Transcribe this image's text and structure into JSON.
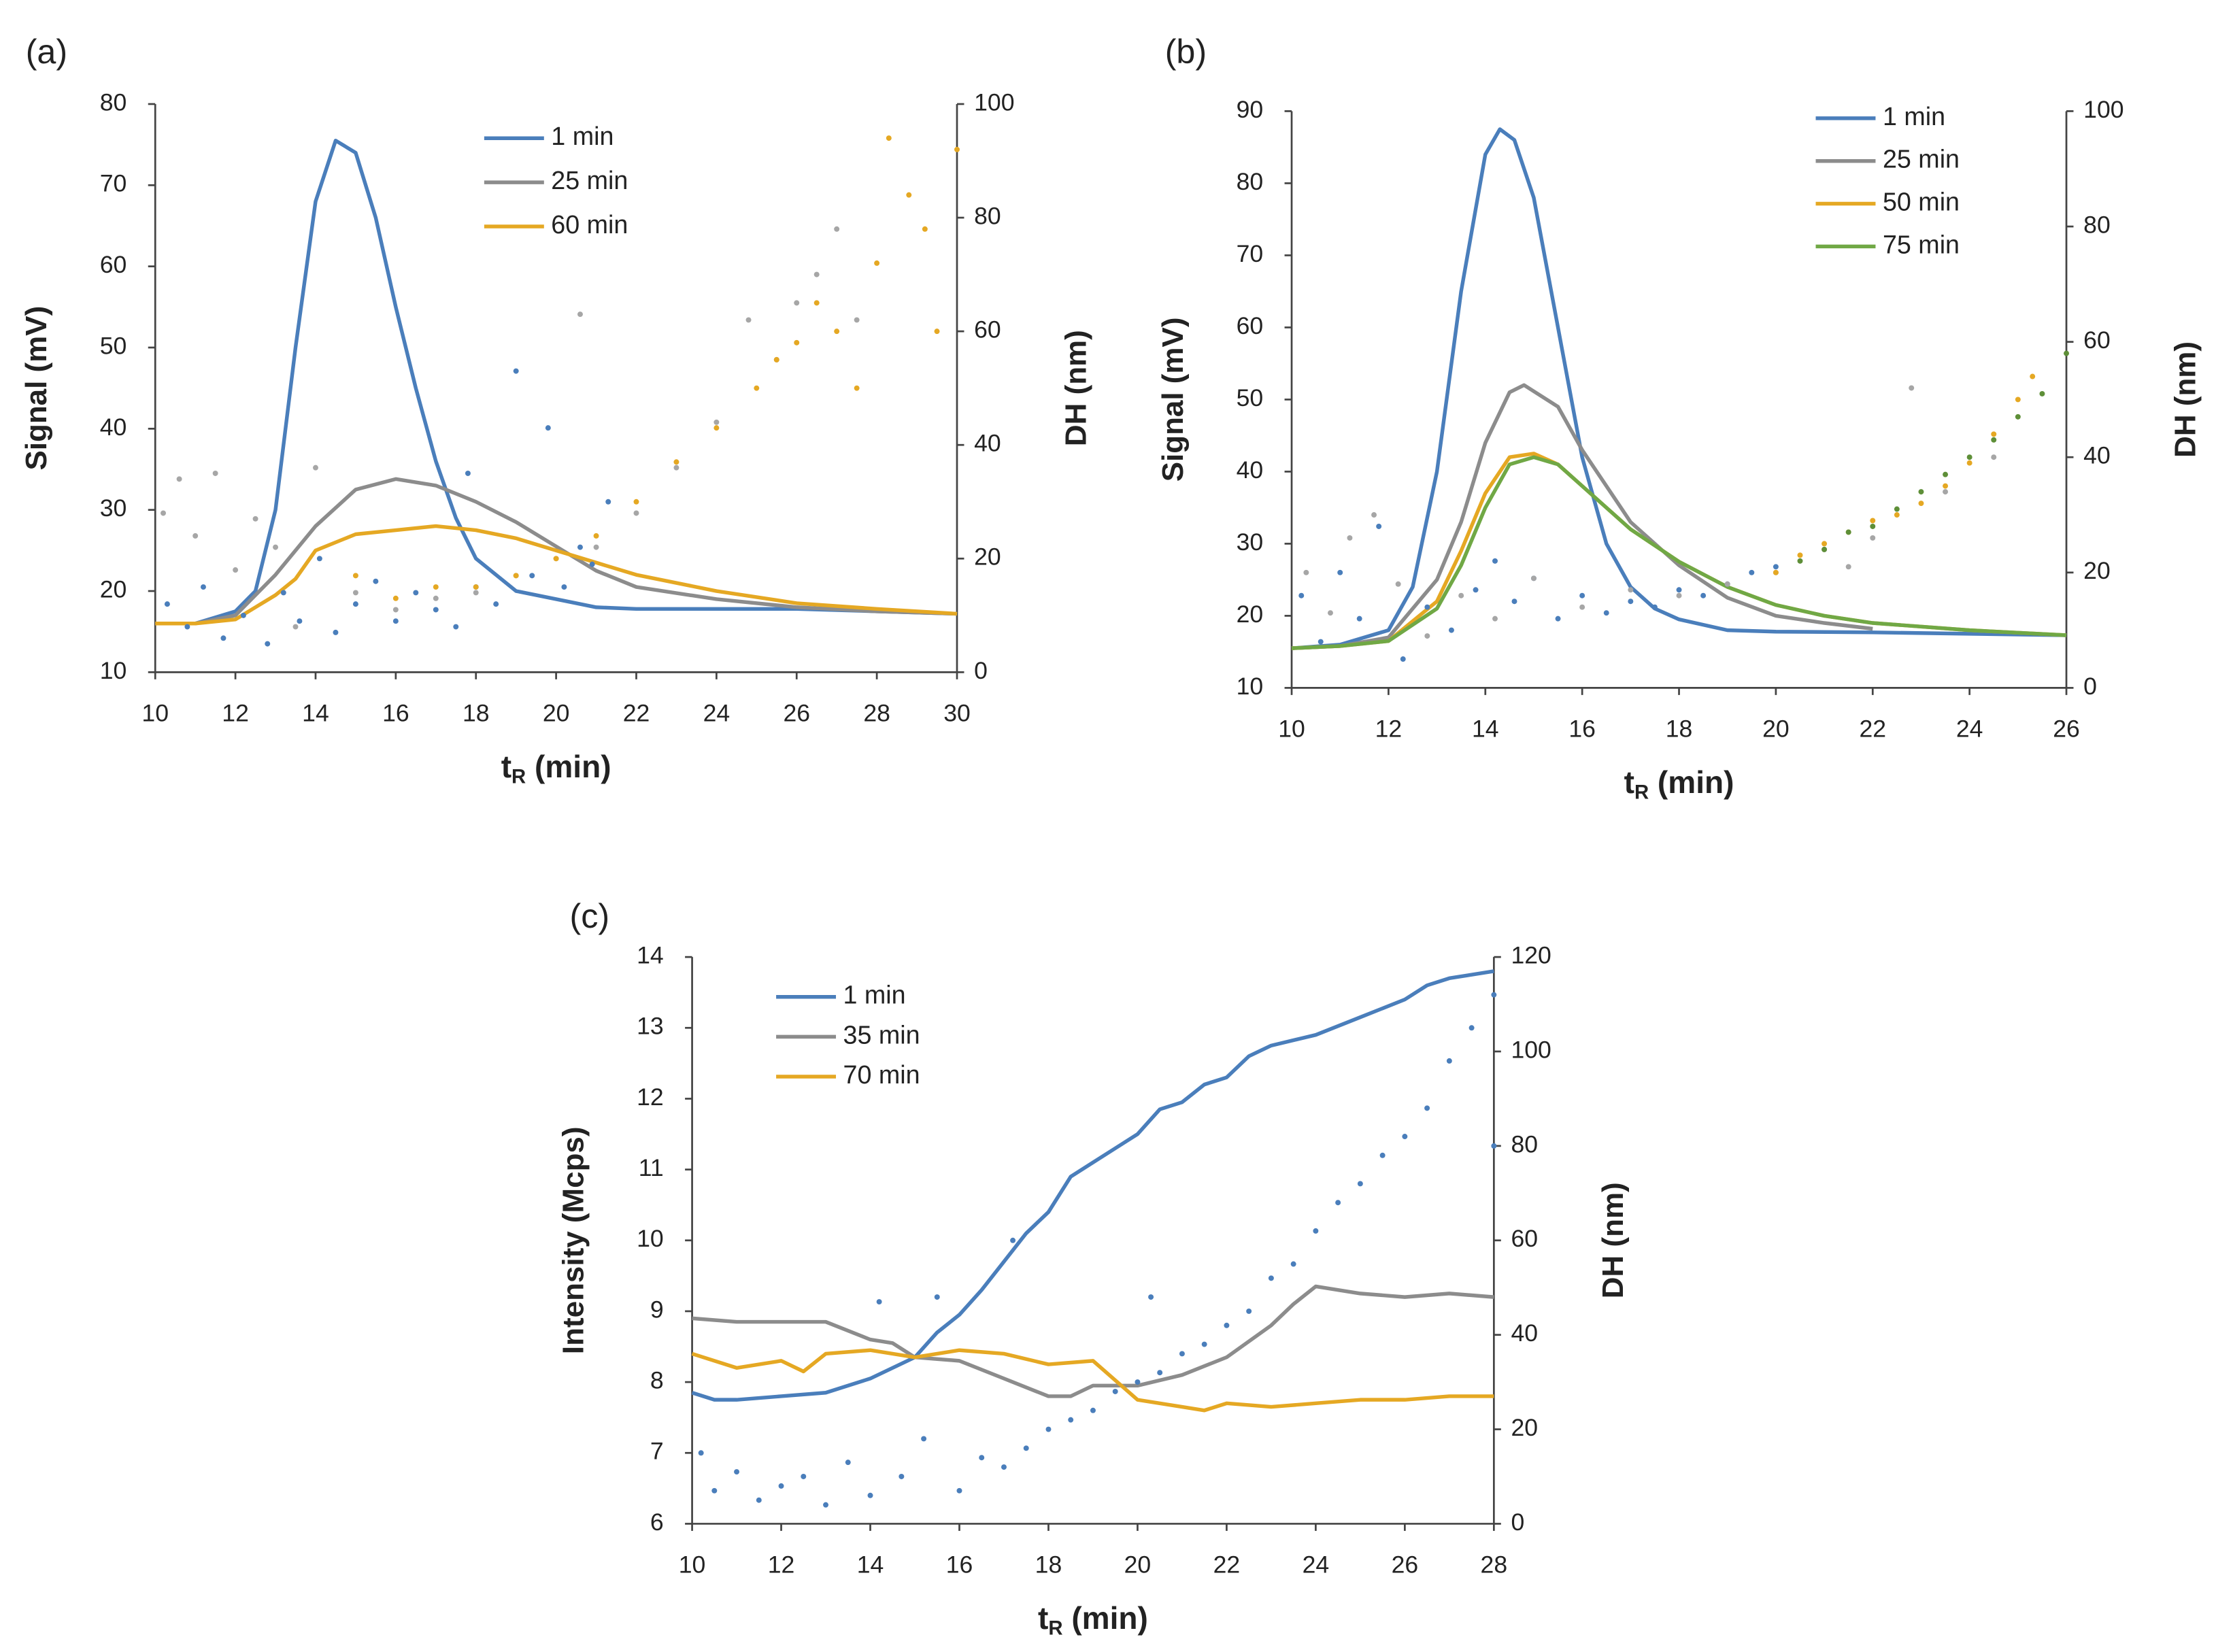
{
  "chart_data": [
    {
      "type": "line",
      "panel": "(a)",
      "x_label": [
        "t",
        "R",
        " (min)"
      ],
      "y_label": "Signal (mV)",
      "y2_label": "DH (nm)",
      "xlim": [
        10,
        30
      ],
      "xticks": [
        10,
        12,
        14,
        16,
        18,
        20,
        22,
        24,
        26,
        28,
        30
      ],
      "ylim": [
        10,
        80
      ],
      "yticks": [
        10,
        20,
        30,
        40,
        50,
        60,
        70,
        80
      ],
      "y2lim": [
        0,
        100
      ],
      "y2ticks": [
        0,
        20,
        40,
        60,
        80,
        100
      ],
      "series": [
        {
          "name": "1 min",
          "color": "#4a7ebb",
          "x": [
            10,
            11,
            12,
            12.5,
            13,
            13.5,
            14,
            14.5,
            15,
            15.5,
            16,
            16.5,
            17,
            17.5,
            18,
            19,
            20,
            21,
            22,
            24,
            26,
            28,
            30
          ],
          "values": [
            16,
            16,
            17.5,
            20,
            30,
            50,
            68,
            75.5,
            74,
            66,
            55,
            45,
            36,
            29,
            24,
            20,
            19,
            18,
            17.8,
            17.8,
            17.8,
            17.5,
            17.2
          ]
        },
        {
          "name": "25 min",
          "color": "#8c8c8c",
          "x": [
            10,
            11,
            12,
            13,
            14,
            15,
            16,
            17,
            18,
            19,
            20,
            21,
            22,
            24,
            26,
            28,
            30
          ],
          "values": [
            16,
            16,
            17,
            22,
            28,
            32.5,
            33.8,
            33,
            31,
            28.5,
            25.5,
            22.5,
            20.5,
            19,
            18,
            17.5,
            17.2
          ]
        },
        {
          "name": "60 min",
          "color": "#e5a823",
          "x": [
            10,
            11,
            12,
            13,
            13.5,
            14,
            15,
            16,
            17,
            18,
            19,
            20,
            21,
            22,
            24,
            26,
            28,
            30
          ],
          "values": [
            16,
            16,
            16.5,
            19.5,
            21.5,
            25,
            27,
            27.5,
            28,
            27.5,
            26.5,
            25,
            23.5,
            22,
            20,
            18.5,
            17.8,
            17.2
          ]
        },
        {
          "type": "scatter",
          "axis": "y2",
          "color": "#4a7ebb",
          "x": [
            10.3,
            10.8,
            11.2,
            11.7,
            12.2,
            12.8,
            13.2,
            13.6,
            14.1,
            14.5,
            15,
            15.5,
            16,
            16.5,
            17,
            17.5,
            18,
            18.5,
            19,
            19.4,
            19.8,
            20.2,
            20.6,
            20.9,
            21.3,
            17.8
          ],
          "values": [
            12,
            8,
            15,
            6,
            10,
            5,
            14,
            9,
            20,
            7,
            12,
            16,
            9,
            14,
            11,
            8,
            15,
            12,
            53,
            17,
            43,
            15,
            22,
            19,
            30,
            35
          ]
        },
        {
          "type": "scatter",
          "axis": "y2",
          "color": "#a6a6a6",
          "x": [
            10.2,
            10.6,
            11,
            11.5,
            12,
            12.5,
            13,
            13.5,
            14,
            15,
            16,
            17,
            18,
            19,
            20,
            20.6,
            21,
            22,
            23,
            24,
            24.8,
            25.5,
            26,
            26.5,
            27,
            27.5
          ],
          "values": [
            28,
            34,
            24,
            35,
            18,
            27,
            22,
            8,
            36,
            14,
            11,
            13,
            14,
            17,
            20,
            63,
            22,
            28,
            36,
            44,
            62,
            55,
            65,
            70,
            78,
            62
          ]
        },
        {
          "type": "scatter",
          "axis": "y2",
          "color": "#e5a823",
          "x": [
            15,
            16,
            17,
            18,
            19,
            20,
            21,
            22,
            23,
            24,
            25,
            25.5,
            26,
            26.5,
            27,
            27.5,
            28,
            28.3,
            28.8,
            29.2,
            29.5,
            30
          ],
          "values": [
            17,
            13,
            15,
            15,
            17,
            20,
            24,
            30,
            37,
            43,
            50,
            55,
            58,
            65,
            60,
            50,
            72,
            94,
            84,
            78,
            60,
            92
          ]
        }
      ]
    },
    {
      "type": "line",
      "panel": "(b)",
      "x_label": [
        "t",
        "R",
        " (min)"
      ],
      "y_label": "Signal (mV)",
      "y2_label": "DH (nm)",
      "xlim": [
        10,
        26
      ],
      "xticks": [
        10,
        12,
        14,
        16,
        18,
        20,
        22,
        24,
        26
      ],
      "ylim": [
        10,
        90
      ],
      "yticks": [
        10,
        20,
        30,
        40,
        50,
        60,
        70,
        80,
        90
      ],
      "y2lim": [
        0,
        100
      ],
      "y2ticks": [
        0,
        20,
        40,
        60,
        80,
        100
      ],
      "series": [
        {
          "name": "1 min",
          "color": "#4a7ebb",
          "x": [
            10,
            11,
            12,
            12.5,
            13,
            13.5,
            14,
            14.3,
            14.6,
            15,
            15.5,
            16,
            16.5,
            17,
            17.5,
            18,
            19,
            20,
            22,
            24,
            26
          ],
          "values": [
            15.5,
            16,
            18,
            24,
            40,
            65,
            84,
            87.5,
            86,
            78,
            60,
            42,
            30,
            24,
            21,
            19.5,
            18,
            17.8,
            17.7,
            17.5,
            17.3
          ]
        },
        {
          "name": "25 min",
          "color": "#8c8c8c",
          "x": [
            10,
            11,
            12,
            13,
            13.5,
            14,
            14.5,
            14.8,
            15.5,
            16,
            17,
            18,
            19,
            20,
            21,
            22
          ],
          "values": [
            15.5,
            15.8,
            17,
            25,
            33,
            44,
            51,
            52,
            49,
            43,
            33,
            27,
            22.5,
            20,
            19,
            18.2
          ]
        },
        {
          "name": "50 min",
          "color": "#e5a823",
          "x": [
            10,
            11,
            12,
            13,
            13.5,
            14,
            14.5,
            15,
            15.5,
            16,
            17,
            18,
            19,
            20,
            21,
            22,
            24,
            26
          ],
          "values": [
            15.5,
            15.8,
            16.5,
            22,
            29,
            37,
            42,
            42.5,
            41,
            38,
            32,
            27.5,
            24,
            21.5,
            20,
            19,
            18,
            17.3
          ]
        },
        {
          "name": "75 min",
          "color": "#70a845",
          "x": [
            10,
            11,
            12,
            13,
            13.5,
            14,
            14.5,
            15,
            15.5,
            16,
            17,
            18,
            19,
            20,
            21,
            22,
            24,
            26
          ],
          "values": [
            15.5,
            15.8,
            16.5,
            21,
            27,
            35,
            41,
            42,
            41,
            38,
            32,
            27.5,
            24,
            21.5,
            20,
            19,
            18,
            17.3
          ]
        },
        {
          "type": "scatter",
          "axis": "y2",
          "color": "#4a7ebb",
          "x": [
            10.2,
            10.6,
            11,
            11.4,
            11.8,
            12.3,
            12.8,
            13.3,
            13.8,
            14.2,
            14.6,
            15,
            15.5,
            16,
            16.5,
            17,
            17.5,
            18,
            18.5,
            19,
            19.5,
            20
          ],
          "values": [
            16,
            8,
            20,
            12,
            28,
            5,
            14,
            10,
            17,
            22,
            15,
            19,
            12,
            16,
            13,
            15,
            14,
            17,
            16,
            18,
            20,
            21
          ]
        },
        {
          "type": "scatter",
          "axis": "y2",
          "color": "#a6a6a6",
          "x": [
            10.3,
            10.8,
            11.2,
            11.7,
            12.2,
            12.8,
            13.5,
            14.2,
            15,
            16,
            17,
            18,
            19,
            20,
            21,
            21.5,
            22,
            22.8,
            23.5,
            24.5
          ],
          "values": [
            20,
            13,
            26,
            30,
            18,
            9,
            16,
            12,
            19,
            14,
            17,
            16,
            18,
            20,
            24,
            21,
            26,
            52,
            34,
            40
          ]
        },
        {
          "type": "scatter",
          "axis": "y2",
          "color": "#e5a823",
          "x": [
            20,
            20.5,
            21,
            21.5,
            22,
            22.5,
            23,
            23.5,
            24,
            24.5,
            25,
            25.3
          ],
          "values": [
            20,
            23,
            25,
            27,
            29,
            30,
            32,
            35,
            39,
            44,
            50,
            54
          ]
        },
        {
          "type": "scatter",
          "axis": "y2",
          "color": "#5e8f38",
          "x": [
            20.5,
            21,
            21.5,
            22,
            22.5,
            23,
            23.5,
            24,
            24.5,
            25,
            25.5,
            26
          ],
          "values": [
            22,
            24,
            27,
            28,
            31,
            34,
            37,
            40,
            43,
            47,
            51,
            58
          ]
        }
      ]
    },
    {
      "type": "line",
      "panel": "(c)",
      "x_label": [
        "t",
        "R",
        " (min)"
      ],
      "y_label": "Intensity (Mcps)",
      "y2_label": "DH (nm)",
      "xlim": [
        10,
        28
      ],
      "xticks": [
        10,
        12,
        14,
        16,
        18,
        20,
        22,
        24,
        26,
        28
      ],
      "ylim": [
        6,
        14
      ],
      "yticks": [
        6,
        7,
        8,
        9,
        10,
        11,
        12,
        13,
        14
      ],
      "y2lim": [
        0,
        120
      ],
      "y2ticks": [
        0,
        20,
        40,
        60,
        80,
        100,
        120
      ],
      "series": [
        {
          "name": "1 min",
          "color": "#4a7ebb",
          "x": [
            10,
            10.5,
            11,
            12,
            13,
            14,
            15,
            15.5,
            16,
            16.5,
            17,
            17.5,
            18,
            18.5,
            19,
            19.5,
            20,
            20.5,
            21,
            21.5,
            22,
            22.5,
            23,
            24,
            25,
            26,
            26.5,
            27,
            28
          ],
          "values": [
            7.85,
            7.75,
            7.75,
            7.8,
            7.85,
            8.05,
            8.35,
            8.7,
            8.95,
            9.3,
            9.7,
            10.1,
            10.4,
            10.9,
            11.1,
            11.3,
            11.5,
            11.85,
            11.95,
            12.2,
            12.3,
            12.6,
            12.75,
            12.9,
            13.15,
            13.4,
            13.6,
            13.7,
            13.8
          ]
        },
        {
          "name": "35 min",
          "color": "#8c8c8c",
          "x": [
            10,
            11,
            12,
            13,
            14,
            14.5,
            15,
            16,
            17,
            18,
            18.5,
            19,
            20,
            21,
            22,
            23,
            23.5,
            24,
            25,
            26,
            27,
            28
          ],
          "values": [
            8.9,
            8.85,
            8.85,
            8.85,
            8.6,
            8.55,
            8.35,
            8.3,
            8.05,
            7.8,
            7.8,
            7.95,
            7.95,
            8.1,
            8.35,
            8.8,
            9.1,
            9.35,
            9.25,
            9.2,
            9.25,
            9.2
          ]
        },
        {
          "name": "70 min",
          "color": "#e5a823",
          "x": [
            10,
            11,
            12,
            12.5,
            13,
            14,
            15,
            16,
            17,
            18,
            19,
            20,
            21,
            21.5,
            22,
            23,
            24,
            25,
            26,
            27,
            28
          ],
          "values": [
            8.4,
            8.2,
            8.3,
            8.15,
            8.4,
            8.45,
            8.35,
            8.45,
            8.4,
            8.25,
            8.3,
            7.75,
            7.65,
            7.6,
            7.7,
            7.65,
            7.7,
            7.75,
            7.75,
            7.8,
            7.8
          ]
        },
        {
          "type": "scatter",
          "axis": "y2",
          "color": "#4a7ebb",
          "x": [
            10.2,
            10.5,
            11,
            11.5,
            12,
            12.5,
            13,
            13.5,
            14,
            14.2,
            14.7,
            15.2,
            15.5,
            16,
            16.5,
            17,
            17.2,
            17.5,
            18,
            18.5,
            19,
            19.5,
            20,
            20.3,
            20.5,
            21,
            21.5,
            22,
            22.5,
            23,
            23.5,
            24,
            24.5,
            25,
            25.5,
            26,
            26.5,
            27,
            27.5,
            28,
            28
          ],
          "values": [
            15,
            7,
            11,
            5,
            8,
            10,
            4,
            13,
            6,
            47,
            10,
            18,
            48,
            7,
            14,
            12,
            60,
            16,
            20,
            22,
            24,
            28,
            30,
            48,
            32,
            36,
            38,
            42,
            45,
            52,
            55,
            62,
            68,
            72,
            78,
            82,
            88,
            98,
            105,
            112,
            80
          ]
        }
      ]
    }
  ]
}
